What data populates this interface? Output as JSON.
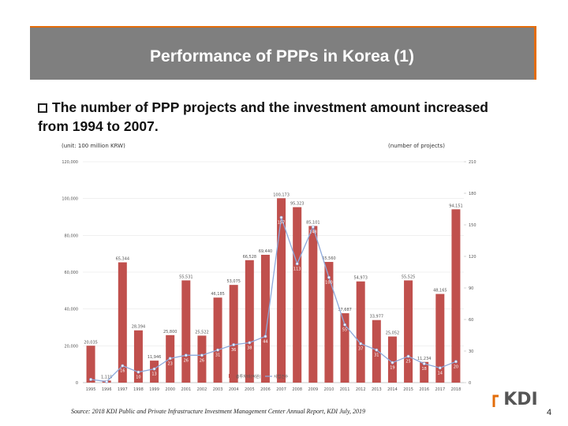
{
  "slide": {
    "title": "Performance of PPPs in Korea (1)",
    "bullet": "The number of PPP projects and the investment amount increased from 1994 to 2007.",
    "source": "Source: 2018 KDI Public and Private Infrastructure Investment Management Center Annual Report, KDI July, 2019",
    "page": "4",
    "logo": "KDI"
  },
  "chart_data": {
    "type": "bar",
    "left_unit": "(unit: 100 million KRW)",
    "right_unit": "(number of projects)",
    "categories": [
      "1995",
      "1996",
      "1997",
      "1998",
      "1999",
      "2000",
      "2001",
      "2002",
      "2003",
      "2004",
      "2005",
      "2006",
      "2007",
      "2008",
      "2009",
      "2010",
      "2011",
      "2012",
      "2013",
      "2014",
      "2015",
      "2016",
      "2017",
      "2018"
    ],
    "series": [
      {
        "name": "총투자비(억원)",
        "color": "#c0504d",
        "values": [
          20035,
          1119,
          65344,
          28394,
          11946,
          25800,
          55531,
          25522,
          46185,
          53075,
          66528,
          69440,
          100173,
          95323,
          85101,
          65560,
          37687,
          54973,
          33977,
          25052,
          55525,
          11234,
          48165,
          94151
        ],
        "value_labels": [
          "20,035",
          "1,119",
          "65,344",
          "28,394",
          "11,946",
          "25,800",
          "55,531",
          "25,522",
          "46,185",
          "53,075",
          "66,528",
          "69,440",
          "100,173",
          "95,323",
          "85,101",
          "65,560",
          "37,687",
          "54,973",
          "33,977",
          "25,052",
          "55,525",
          "11,234",
          "48,165",
          "94,151"
        ]
      },
      {
        "name": "사업건수",
        "color": "#8ea9db",
        "type": "line",
        "axis": "y2",
        "values": [
          3,
          1,
          16,
          10,
          13,
          23,
          26,
          26,
          31,
          36,
          38,
          44,
          157,
          113,
          148,
          100,
          55,
          37,
          31,
          19,
          25,
          18,
          14,
          20
        ]
      }
    ],
    "ylim": [
      0,
      120000
    ],
    "yticks": [
      0,
      {
        "value": 20000,
        "label": "20,000"
      },
      {
        "value": 40000,
        "label": "40,000"
      },
      {
        "value": 60000,
        "label": "60,000"
      },
      {
        "value": 80000,
        "label": "80,000"
      },
      {
        "value": 100000,
        "label": "100,000"
      },
      {
        "value": 120000,
        "label": "120,000"
      }
    ],
    "y2lim": [
      0,
      210
    ],
    "y2ticks": [
      0,
      30,
      60,
      90,
      120,
      150,
      180,
      210
    ],
    "grid": true,
    "legend": "bottom"
  }
}
